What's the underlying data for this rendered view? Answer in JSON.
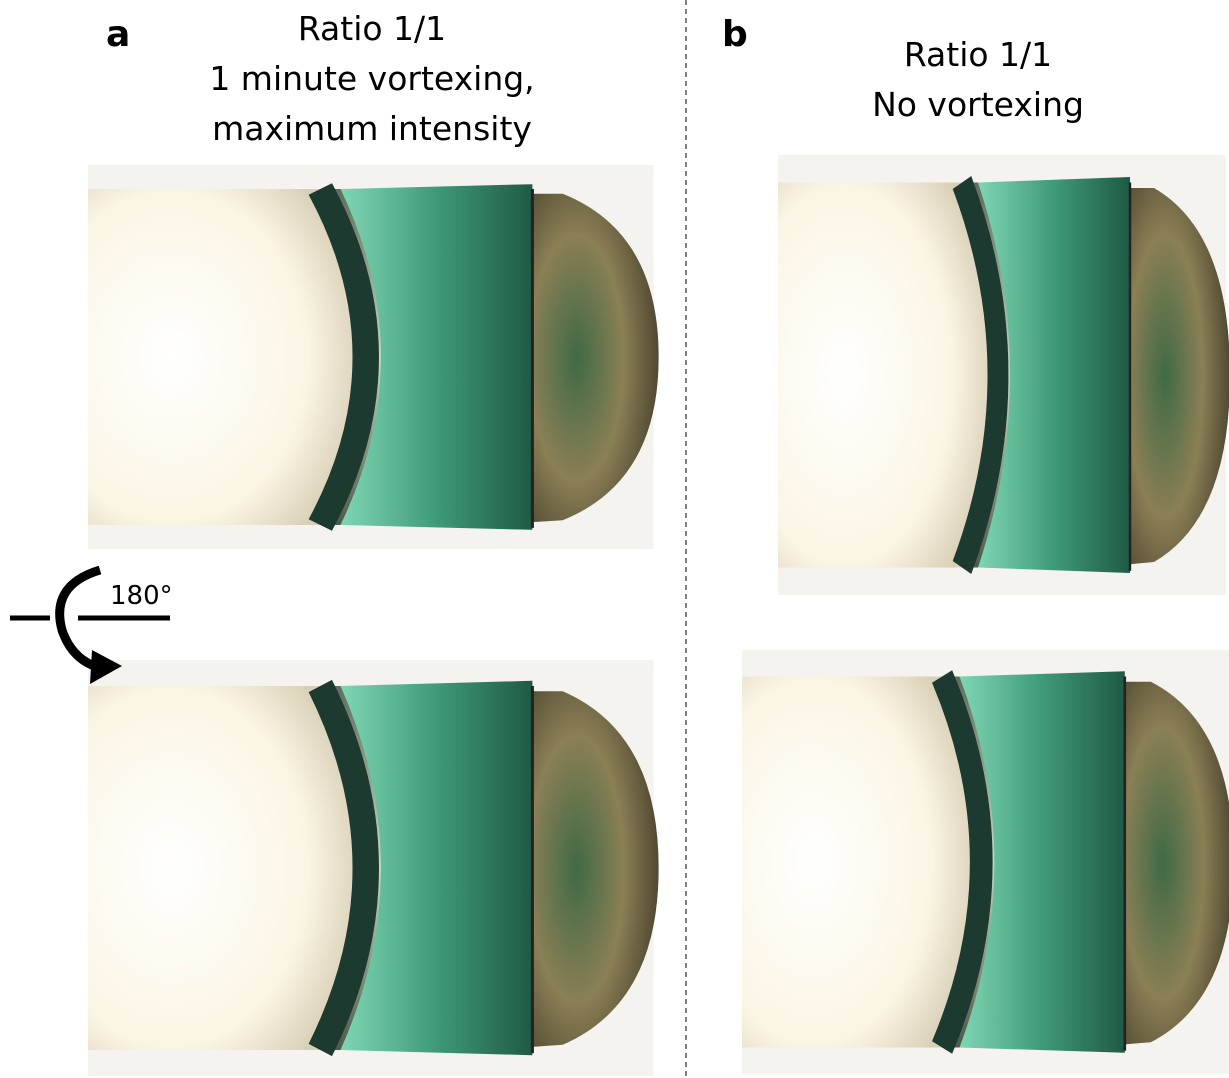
{
  "panels": [
    {
      "label": "a",
      "title_lines": [
        "Ratio 1/1",
        "1 minute vortexing,",
        "maximum intensity"
      ]
    },
    {
      "label": "b",
      "title_lines": [
        "Ratio 1/1",
        "No vortexing"
      ]
    }
  ],
  "rotation_label": "180°"
}
